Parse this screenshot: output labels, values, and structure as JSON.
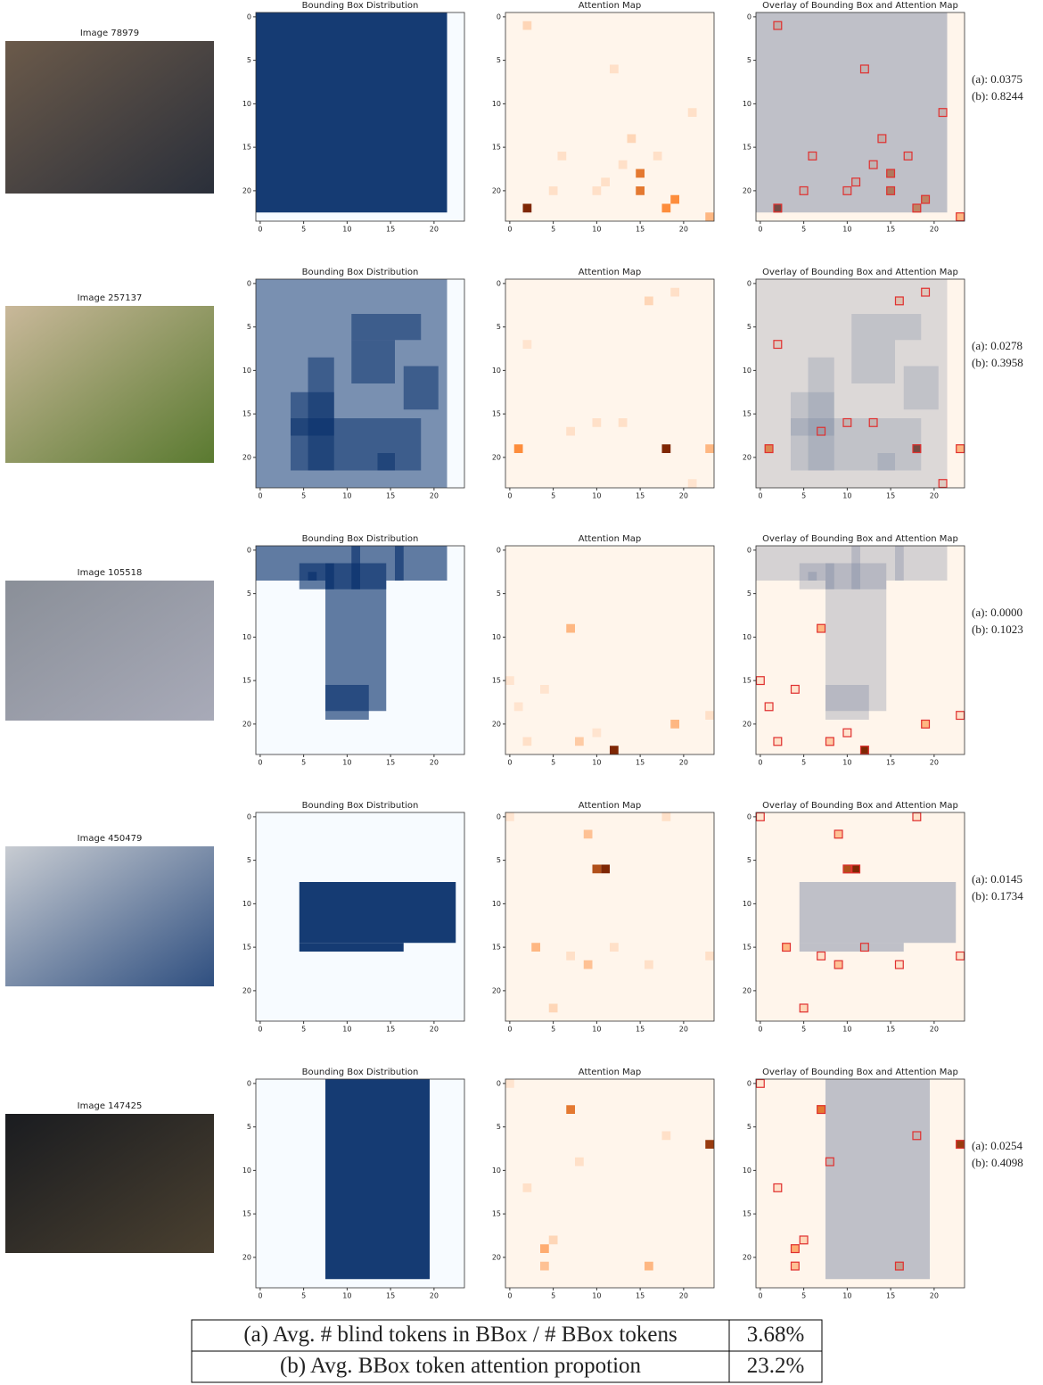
{
  "axes": {
    "lim": [
      -0.5,
      23.5
    ],
    "ticks": [
      0,
      5,
      10,
      15,
      20
    ]
  },
  "panel_titles": {
    "bbox": "Bounding Box Distribution",
    "attention": "Attention Map",
    "overlay": "Overlay of Bounding Box and Attention Map"
  },
  "rows": [
    {
      "image_title": "Image 78979",
      "metric_a": "(a): 0.0375",
      "metric_b": "(b): 0.8244",
      "boxes": [
        [
          -0.5,
          21.5,
          -0.5,
          22.5
        ]
      ],
      "attention": [
        [
          2,
          22,
          1
        ],
        [
          15,
          18,
          0.6
        ],
        [
          15,
          20,
          0.6
        ],
        [
          19,
          21,
          0.5
        ],
        [
          18,
          22,
          0.5
        ],
        [
          2,
          1,
          0.15
        ],
        [
          12,
          6,
          0.1
        ],
        [
          14,
          14,
          0.15
        ],
        [
          21,
          11,
          0.1
        ],
        [
          23,
          23,
          0.3
        ],
        [
          6,
          16,
          0.1
        ],
        [
          11,
          19,
          0.1
        ],
        [
          10,
          20,
          0.1
        ],
        [
          5,
          20,
          0.1
        ],
        [
          13,
          17,
          0.1
        ],
        [
          17,
          16,
          0.1
        ]
      ]
    },
    {
      "image_title": "Image 257137",
      "metric_a": "(a): 0.0278",
      "metric_b": "(b): 0.3958",
      "boxes": [
        [
          -0.5,
          21.5,
          -0.5,
          23.5
        ],
        [
          10.5,
          18.5,
          3.5,
          6.5
        ],
        [
          10.5,
          15.5,
          6.5,
          11.5
        ],
        [
          16.5,
          20.5,
          9.5,
          14.5
        ],
        [
          5.5,
          8.5,
          8.5,
          21.5
        ],
        [
          3.5,
          18.5,
          15.5,
          21.5
        ],
        [
          3.5,
          8.5,
          12.5,
          17.5
        ],
        [
          13.5,
          15.5,
          19.5,
          21.5
        ]
      ],
      "attention": [
        [
          18,
          19,
          1
        ],
        [
          1,
          19,
          0.5
        ],
        [
          23,
          19,
          0.3
        ],
        [
          16,
          2,
          0.15
        ],
        [
          19,
          1,
          0.1
        ],
        [
          13,
          16,
          0.1
        ],
        [
          7,
          17,
          0.1
        ],
        [
          10,
          16,
          0.1
        ],
        [
          2,
          7,
          0.08
        ],
        [
          21,
          23,
          0.08
        ]
      ]
    },
    {
      "image_title": "Image 105518",
      "metric_a": "(a): 0.0000",
      "metric_b": "(b): 0.1023",
      "boxes": [
        [
          -0.5,
          21.5,
          -0.5,
          3.5
        ],
        [
          7.5,
          14.5,
          3.5,
          18.5
        ],
        [
          7.5,
          12.5,
          15.5,
          19.5
        ],
        [
          4.5,
          14.5,
          1.5,
          4.5
        ],
        [
          10.5,
          11.5,
          -0.5,
          4.5
        ],
        [
          15.5,
          16.5,
          -0.5,
          3.5
        ],
        [
          7.5,
          8.5,
          1.5,
          4.5
        ],
        [
          5.5,
          6.5,
          2.5,
          3.5
        ]
      ],
      "attention": [
        [
          12,
          23,
          1
        ],
        [
          7,
          9,
          0.3
        ],
        [
          19,
          20,
          0.3
        ],
        [
          8,
          22,
          0.2
        ],
        [
          2,
          22,
          0.1
        ],
        [
          23,
          19,
          0.1
        ],
        [
          0,
          15,
          0.08
        ],
        [
          4,
          16,
          0.08
        ],
        [
          1,
          18,
          0.08
        ],
        [
          10,
          21,
          0.08
        ]
      ]
    },
    {
      "image_title": "Image 450479",
      "metric_a": "(a): 0.0145",
      "metric_b": "(b): 0.1734",
      "boxes": [
        [
          4.5,
          22.5,
          7.5,
          14.5
        ],
        [
          4.5,
          16.5,
          14.5,
          15.5
        ]
      ],
      "attention": [
        [
          10,
          6,
          0.8
        ],
        [
          11,
          6,
          1
        ],
        [
          9,
          2,
          0.25
        ],
        [
          3,
          15,
          0.3
        ],
        [
          9,
          17,
          0.25
        ],
        [
          5,
          22,
          0.15
        ],
        [
          18,
          0,
          0.1
        ],
        [
          0,
          0,
          0.08
        ],
        [
          23,
          16,
          0.1
        ],
        [
          7,
          16,
          0.1
        ],
        [
          16,
          17,
          0.1
        ],
        [
          12,
          15,
          0.1
        ]
      ]
    },
    {
      "image_title": "Image 147425",
      "metric_a": "(a): 0.0254",
      "metric_b": "(b): 0.4098",
      "boxes": [
        [
          7.5,
          19.5,
          -0.5,
          22.5
        ]
      ],
      "attention": [
        [
          23,
          7,
          0.9
        ],
        [
          7,
          3,
          0.6
        ],
        [
          4,
          19,
          0.35
        ],
        [
          4,
          21,
          0.25
        ],
        [
          16,
          21,
          0.3
        ],
        [
          2,
          12,
          0.1
        ],
        [
          8,
          9,
          0.1
        ],
        [
          18,
          6,
          0.1
        ],
        [
          5,
          18,
          0.15
        ],
        [
          0,
          0,
          0.08
        ]
      ]
    }
  ],
  "table": {
    "rows": [
      [
        "(a) Avg. # blind tokens in BBox / # BBox tokens",
        "3.68%"
      ],
      [
        "(b) Avg. BBox token attention propotion",
        "23.2%"
      ]
    ]
  }
}
